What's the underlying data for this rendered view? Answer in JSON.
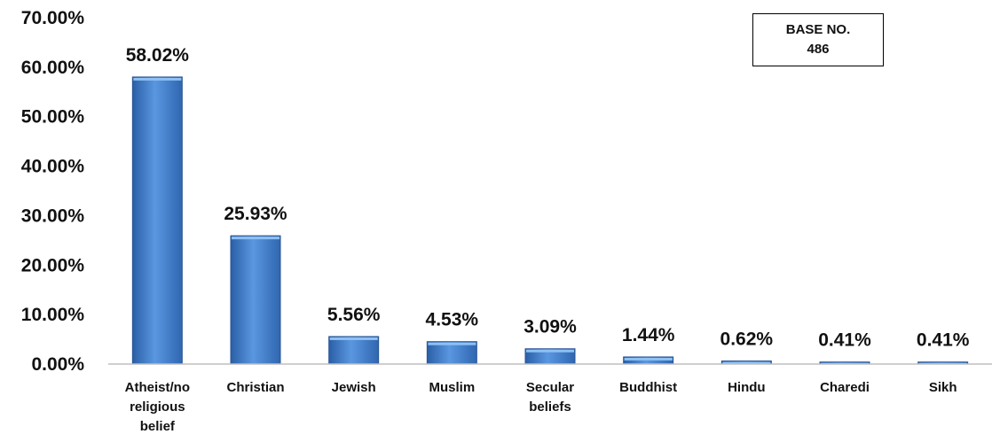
{
  "chart_data": {
    "type": "bar",
    "categories": [
      [
        "Atheist/no",
        "religious",
        "belief"
      ],
      [
        "Christian"
      ],
      [
        "Jewish"
      ],
      [
        "Muslim"
      ],
      [
        "Secular",
        "beliefs"
      ],
      [
        "Buddhist"
      ],
      [
        "Hindu"
      ],
      [
        "Charedi"
      ],
      [
        "Sikh"
      ]
    ],
    "values": [
      58.02,
      25.93,
      5.56,
      4.53,
      3.09,
      1.44,
      0.62,
      0.41,
      0.41
    ],
    "data_labels": [
      "58.02%",
      "25.93%",
      "5.56%",
      "4.53%",
      "3.09%",
      "1.44%",
      "0.62%",
      "0.41%",
      "0.41%"
    ],
    "y_ticks": [
      "0.00%",
      "10.00%",
      "20.00%",
      "30.00%",
      "40.00%",
      "50.00%",
      "60.00%",
      "70.00%"
    ],
    "ylim": [
      0,
      70
    ],
    "grid": false,
    "bar_color": "#3f7fd0"
  },
  "base_box": {
    "line1": "BASE NO.",
    "line2": "486"
  }
}
